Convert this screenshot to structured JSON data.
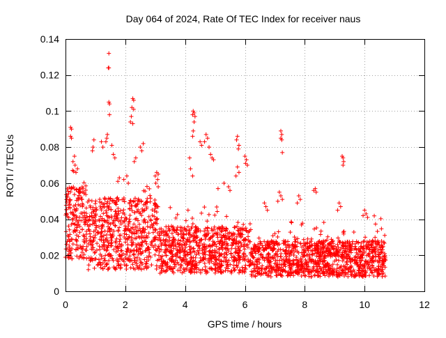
{
  "chart_data": {
    "type": "scatter",
    "title": "Day 064 of 2024, Rate Of TEC Index for receiver naus",
    "xlabel": "GPS time / hours",
    "ylabel": "ROTI / TECUs",
    "xlim": [
      0,
      12
    ],
    "ylim": [
      0,
      0.14
    ],
    "xticks": [
      0,
      2,
      4,
      6,
      8,
      10,
      12
    ],
    "xtick_labels": [
      "0",
      "2",
      "4",
      "6",
      "8",
      "10",
      "12"
    ],
    "yticks": [
      0,
      0.02,
      0.04,
      0.06,
      0.08,
      0.1,
      0.12,
      0.14
    ],
    "ytick_labels": [
      "0",
      "0.02",
      "0.04",
      "0.06",
      "0.08",
      "0.1",
      "0.12",
      "0.14"
    ],
    "grid": true,
    "marker": "+",
    "color": "#ff0000",
    "data_range_hours": [
      0,
      10.7
    ],
    "series": [
      {
        "name": "ROTI",
        "points": [
          [
            1.45,
            0.132
          ],
          [
            1.45,
            0.124
          ],
          [
            1.43,
            0.124
          ],
          [
            1.45,
            0.105
          ],
          [
            1.47,
            0.104
          ],
          [
            1.47,
            0.098
          ],
          [
            2.25,
            0.107
          ],
          [
            2.28,
            0.106
          ],
          [
            2.22,
            0.102
          ],
          [
            2.28,
            0.101
          ],
          [
            2.2,
            0.097
          ],
          [
            2.17,
            0.094
          ],
          [
            2.25,
            0.093
          ],
          [
            4.27,
            0.1
          ],
          [
            4.3,
            0.099
          ],
          [
            4.25,
            0.098
          ],
          [
            4.33,
            0.097
          ],
          [
            4.3,
            0.094
          ],
          [
            4.27,
            0.089
          ],
          [
            4.25,
            0.086
          ],
          [
            0.17,
            0.091
          ],
          [
            0.2,
            0.09
          ],
          [
            0.17,
            0.086
          ],
          [
            0.2,
            0.085
          ],
          [
            7.2,
            0.089
          ],
          [
            7.23,
            0.087
          ],
          [
            7.2,
            0.085
          ],
          [
            7.23,
            0.084
          ],
          [
            7.25,
            0.077
          ],
          [
            9.25,
            0.075
          ],
          [
            9.28,
            0.074
          ],
          [
            9.3,
            0.072
          ],
          [
            9.28,
            0.07
          ],
          [
            1.4,
            0.087
          ],
          [
            1.38,
            0.085
          ],
          [
            1.35,
            0.083
          ],
          [
            0.95,
            0.084
          ],
          [
            0.92,
            0.08
          ],
          [
            0.9,
            0.078
          ],
          [
            1.2,
            0.083
          ],
          [
            1.25,
            0.08
          ],
          [
            1.55,
            0.081
          ],
          [
            1.6,
            0.076
          ],
          [
            1.65,
            0.074
          ],
          [
            2.6,
            0.082
          ],
          [
            2.5,
            0.08
          ],
          [
            2.55,
            0.078
          ],
          [
            2.35,
            0.074
          ],
          [
            2.3,
            0.072
          ],
          [
            4.7,
            0.087
          ],
          [
            4.75,
            0.085
          ],
          [
            4.65,
            0.083
          ],
          [
            4.8,
            0.08
          ],
          [
            4.5,
            0.083
          ],
          [
            4.55,
            0.081
          ],
          [
            4.85,
            0.076
          ],
          [
            4.9,
            0.074
          ],
          [
            4.95,
            0.073
          ],
          [
            5.75,
            0.086
          ],
          [
            5.72,
            0.084
          ],
          [
            5.8,
            0.081
          ],
          [
            5.78,
            0.079
          ],
          [
            6.0,
            0.075
          ],
          [
            6.05,
            0.073
          ],
          [
            6.02,
            0.071
          ],
          [
            6.08,
            0.07
          ],
          [
            5.75,
            0.069
          ],
          [
            5.8,
            0.066
          ],
          [
            5.7,
            0.064
          ],
          [
            4.15,
            0.074
          ],
          [
            4.18,
            0.068
          ],
          [
            4.25,
            0.064
          ],
          [
            3.05,
            0.066
          ],
          [
            3.1,
            0.065
          ],
          [
            3.0,
            0.064
          ],
          [
            3.08,
            0.062
          ],
          [
            3.02,
            0.06
          ],
          [
            3.1,
            0.058
          ],
          [
            0.3,
            0.075
          ],
          [
            0.25,
            0.072
          ],
          [
            0.32,
            0.07
          ],
          [
            0.4,
            0.068
          ],
          [
            0.35,
            0.066
          ],
          [
            8.35,
            0.057
          ],
          [
            8.3,
            0.056
          ],
          [
            8.38,
            0.055
          ],
          [
            7.15,
            0.055
          ],
          [
            7.2,
            0.053
          ],
          [
            7.25,
            0.051
          ],
          [
            7.1,
            0.05
          ],
          [
            7.8,
            0.053
          ],
          [
            7.85,
            0.051
          ],
          [
            7.75,
            0.049
          ],
          [
            9.15,
            0.049
          ],
          [
            9.2,
            0.047
          ],
          [
            9.1,
            0.045
          ],
          [
            10.0,
            0.045
          ],
          [
            10.05,
            0.043
          ],
          [
            9.95,
            0.042
          ],
          [
            10.1,
            0.041
          ],
          [
            6.65,
            0.049
          ],
          [
            6.7,
            0.047
          ],
          [
            6.75,
            0.045
          ],
          [
            2.05,
            0.064
          ],
          [
            1.95,
            0.062
          ],
          [
            2.1,
            0.06
          ],
          [
            1.8,
            0.063
          ],
          [
            1.75,
            0.061
          ],
          [
            5.3,
            0.06
          ],
          [
            5.45,
            0.058
          ],
          [
            5.5,
            0.056
          ],
          [
            5.1,
            0.057
          ]
        ]
      }
    ]
  }
}
